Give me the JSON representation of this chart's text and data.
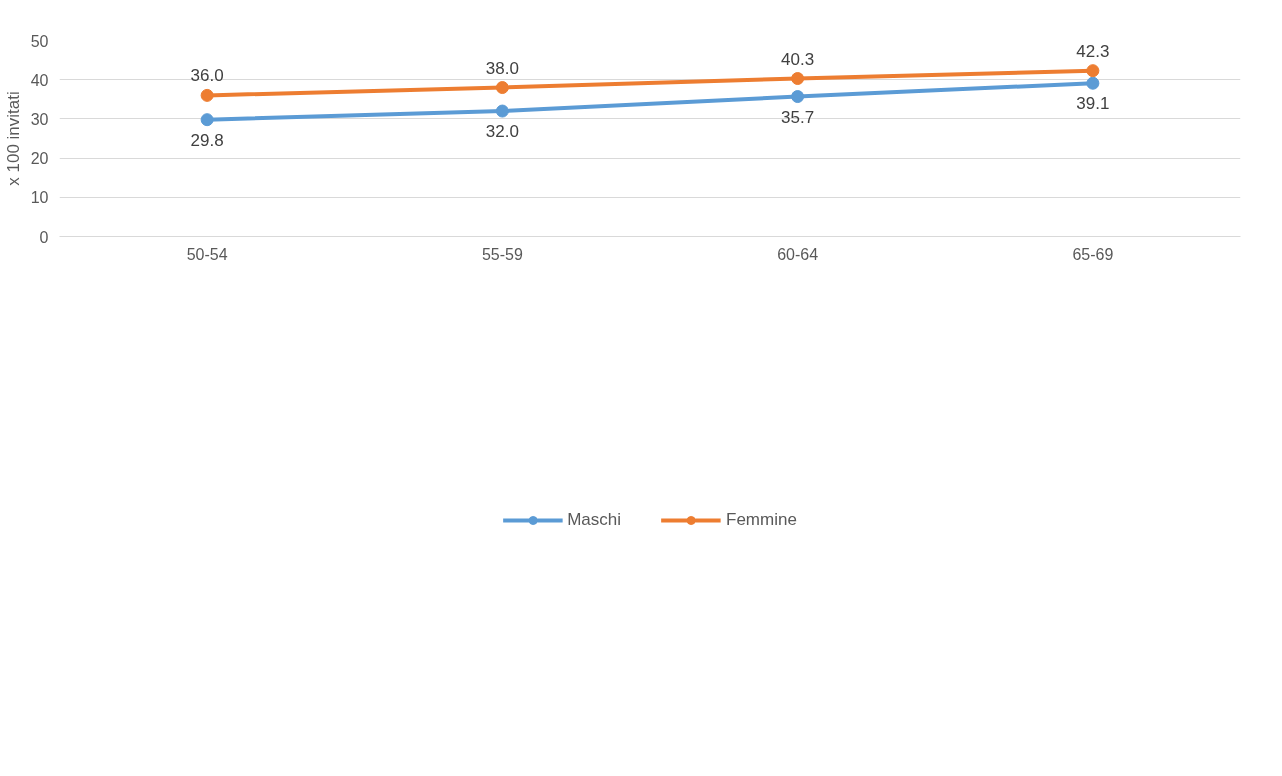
{
  "chart_data": {
    "type": "line",
    "ylabel": "x 100 invitati",
    "categories": [
      "50-54",
      "55-59",
      "60-64",
      "65-69"
    ],
    "series": [
      {
        "name": "Maschi",
        "color": "#5b9bd5",
        "values": [
          29.8,
          32.0,
          35.7,
          39.1
        ],
        "value_labels": [
          "29.8",
          "32.0",
          "35.7",
          "39.1"
        ]
      },
      {
        "name": "Femmine",
        "color": "#ed7d31",
        "values": [
          36.0,
          38.0,
          40.3,
          42.3
        ],
        "value_labels": [
          "36.0",
          "38.0",
          "40.3",
          "42.3"
        ]
      }
    ],
    "ylim": [
      0,
      50
    ],
    "yticks": [
      0,
      10,
      20,
      30,
      40,
      50
    ],
    "grid": "y",
    "legend": "bottom",
    "marker": "circle",
    "line_style": "solid"
  }
}
